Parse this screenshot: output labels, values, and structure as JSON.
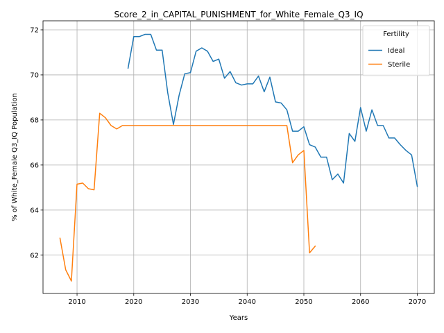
{
  "chart_data": {
    "type": "line",
    "title": "Score_2_in_CAPITAL_PUNISHMENT_for_White_Female_Q3_IQ",
    "xlabel": "Years",
    "ylabel": "% of White_Female Q3_IQ Population",
    "xlim": [
      2004,
      2073
    ],
    "ylim": [
      60.3,
      72.4
    ],
    "xticks": [
      2010,
      2020,
      2030,
      2040,
      2050,
      2060,
      2070
    ],
    "yticks": [
      62,
      64,
      66,
      68,
      70,
      72
    ],
    "grid": true,
    "legend": {
      "title": "Fertility",
      "placement": "top-right"
    },
    "series": [
      {
        "name": "Ideal",
        "color": "#1f77b4",
        "x": [
          2019,
          2020,
          2021,
          2022,
          2023,
          2024,
          2025,
          2026,
          2027,
          2028,
          2029,
          2030,
          2031,
          2032,
          2033,
          2034,
          2035,
          2036,
          2037,
          2038,
          2039,
          2040,
          2041,
          2042,
          2043,
          2044,
          2045,
          2046,
          2047,
          2048,
          2049,
          2050,
          2051,
          2052,
          2053,
          2054,
          2055,
          2056,
          2057,
          2058,
          2059,
          2060,
          2061,
          2062,
          2063,
          2064,
          2065,
          2066,
          2067,
          2068,
          2069,
          2070
        ],
        "y": [
          70.3,
          71.7,
          71.7,
          71.8,
          71.8,
          71.1,
          71.1,
          69.2,
          67.8,
          69.1,
          70.05,
          70.1,
          71.05,
          71.2,
          71.05,
          70.6,
          70.7,
          69.85,
          70.15,
          69.65,
          69.55,
          69.6,
          69.6,
          69.95,
          69.25,
          69.9,
          68.8,
          68.75,
          68.45,
          67.5,
          67.5,
          67.7,
          66.9,
          66.8,
          66.35,
          66.35,
          65.35,
          65.6,
          65.2,
          67.4,
          67.05,
          68.55,
          67.5,
          68.45,
          67.75,
          67.75,
          67.2,
          67.2,
          66.9,
          66.65,
          66.45,
          65.05
        ]
      },
      {
        "name": "Sterile",
        "color": "#ff7f0e",
        "x": [
          2007,
          2008,
          2009,
          2010,
          2011,
          2012,
          2013,
          2014,
          2015,
          2016,
          2017,
          2018,
          2019,
          2020,
          2021,
          2022,
          2023,
          2024,
          2025,
          2026,
          2027,
          2028,
          2029,
          2030,
          2031,
          2032,
          2033,
          2034,
          2035,
          2036,
          2037,
          2038,
          2039,
          2040,
          2041,
          2042,
          2043,
          2044,
          2045,
          2046,
          2047,
          2048,
          2049,
          2050,
          2051,
          2052
        ],
        "y": [
          62.75,
          61.35,
          60.85,
          65.15,
          65.2,
          64.95,
          64.9,
          68.3,
          68.1,
          67.75,
          67.6,
          67.75,
          67.75,
          67.75,
          67.75,
          67.75,
          67.75,
          67.75,
          67.75,
          67.75,
          67.75,
          67.75,
          67.75,
          67.75,
          67.75,
          67.75,
          67.75,
          67.75,
          67.75,
          67.75,
          67.75,
          67.75,
          67.75,
          67.75,
          67.75,
          67.75,
          67.75,
          67.75,
          67.75,
          67.75,
          67.75,
          66.1,
          66.45,
          66.65,
          62.1,
          62.4
        ]
      }
    ]
  }
}
